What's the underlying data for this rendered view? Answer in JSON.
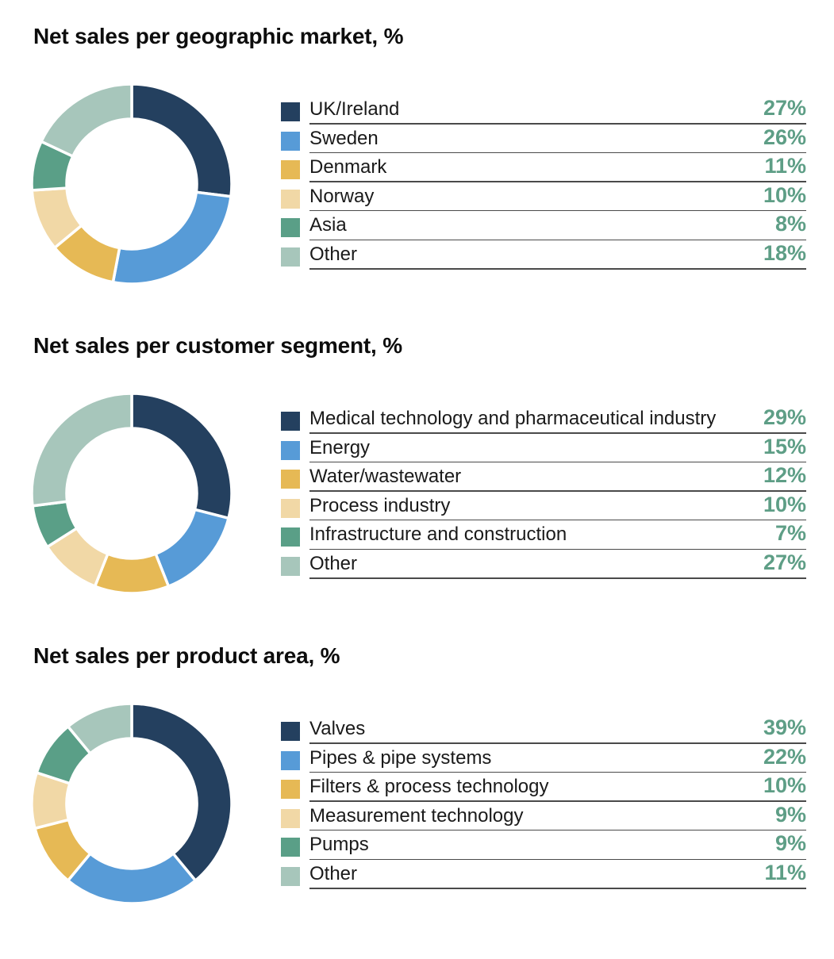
{
  "palette": [
    "#24405f",
    "#579bd7",
    "#e6b955",
    "#f1d8a6",
    "#5a9f87",
    "#a7c6bb"
  ],
  "chart_data": [
    {
      "type": "pie",
      "variant": "donut",
      "title": "Net sales per geographic market, %",
      "unit": "%",
      "categories": [
        "UK/Ireland",
        "Sweden",
        "Denmark",
        "Norway",
        "Asia",
        "Other"
      ],
      "values": [
        27,
        26,
        11,
        10,
        8,
        18
      ],
      "value_labels": [
        "27%",
        "26%",
        "11%",
        "10%",
        "8%",
        "18%"
      ],
      "legend": "right"
    },
    {
      "type": "pie",
      "variant": "donut",
      "title": "Net sales per customer segment, %",
      "unit": "%",
      "categories": [
        "Medical technology and pharmaceutical industry",
        "Energy",
        "Water/wastewater",
        "Process industry",
        "Infrastructure and construction",
        "Other"
      ],
      "values": [
        29,
        15,
        12,
        10,
        7,
        27
      ],
      "value_labels": [
        "29%",
        "15%",
        "12%",
        "10%",
        "7%",
        "27%"
      ],
      "legend": "right"
    },
    {
      "type": "pie",
      "variant": "donut",
      "title": "Net sales per product area, %",
      "unit": "%",
      "categories": [
        "Valves",
        "Pipes & pipe systems",
        "Filters & process technology",
        "Measurement technology",
        "Pumps",
        "Other"
      ],
      "values": [
        39,
        22,
        10,
        9,
        9,
        11
      ],
      "value_labels": [
        "39%",
        "22%",
        "10%",
        "9%",
        "9%",
        "11%"
      ],
      "legend": "right"
    }
  ]
}
